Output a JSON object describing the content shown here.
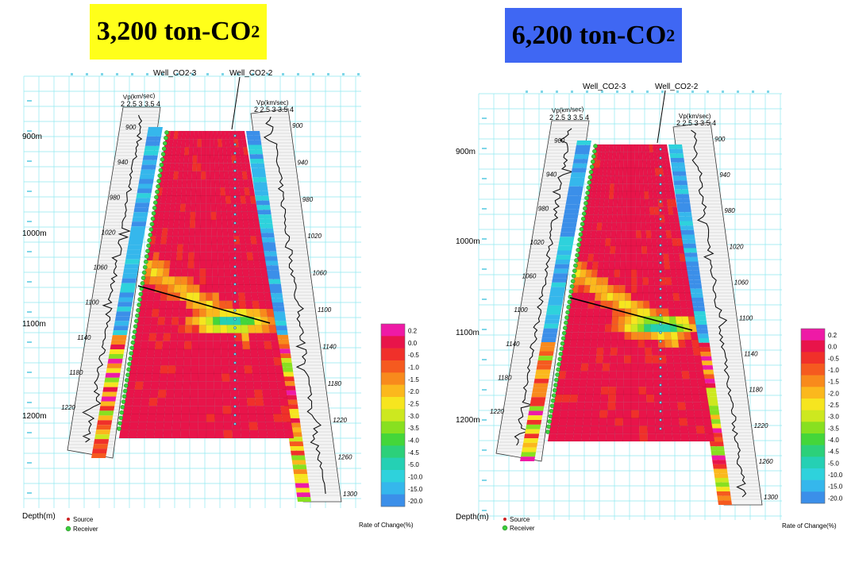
{
  "panels": [
    {
      "id": "left",
      "banner": {
        "text": "3,200 ton-CO",
        "sub": "2",
        "bg": "#ffff1a"
      },
      "well_left": "Well_CO2-3",
      "well_right": "Well_CO2-2",
      "vp_label": "Vp(km/sec)",
      "vp_ticks": "2 2.5 3 3.5 4",
      "depth_labels": [
        "900m",
        "1000m",
        "1100m",
        "1200m"
      ],
      "md_left": [
        "900",
        "940",
        "980",
        "1020",
        "1060",
        "1100",
        "1140",
        "1180",
        "1220"
      ],
      "md_right": [
        "900",
        "940",
        "980",
        "1020",
        "1060",
        "1100",
        "1140",
        "1180",
        "1220",
        "1260",
        "1300"
      ],
      "depth_axis": "Depth(m)",
      "legend_source": "Source",
      "legend_receiver": "Receiver",
      "colorbar_label": "Rate of Change(%)"
    },
    {
      "id": "right",
      "banner": {
        "text": "6,200 ton-CO",
        "sub": "2",
        "bg": "#3f67f3"
      },
      "well_left": "Well_CO2-3",
      "well_right": "Well_CO2-2",
      "vp_label": "Vp(km/sec)",
      "vp_ticks": "2 2.5 3 3.5 4",
      "depth_labels": [
        "900m",
        "1000m",
        "1100m",
        "1200m"
      ],
      "md_left": [
        "900",
        "940",
        "980",
        "1020",
        "1060",
        "1100",
        "1140",
        "1180",
        "1220"
      ],
      "md_right": [
        "900",
        "940",
        "980",
        "1020",
        "1060",
        "1100",
        "1140",
        "1180",
        "1220",
        "1260",
        "1300"
      ],
      "depth_axis": "Depth(m)",
      "legend_source": "Source",
      "legend_receiver": "Receiver",
      "colorbar_label": "Rate of Change(%)"
    }
  ],
  "colorscale": {
    "labels": [
      "0.2",
      "0.0",
      "-0.5",
      "-1.0",
      "-1.5",
      "-2.0",
      "-2.5",
      "-3.0",
      "-3.5",
      "-4.0",
      "-4.5",
      "-5.0",
      "-10.0",
      "-15.0",
      "-20.0"
    ],
    "colors": [
      "#ee1aa6",
      "#e8144a",
      "#f0302a",
      "#f55a1f",
      "#f88a1c",
      "#fbb81d",
      "#f6e51f",
      "#cde81f",
      "#88e020",
      "#44d63a",
      "#2cd07a",
      "#25d0b4",
      "#2ed2dc",
      "#35b7ec",
      "#3b8fe9"
    ]
  },
  "colors": {
    "grid": "#8fe8ef",
    "tomo": "#e01f3d",
    "source": "#cc2222",
    "receiver": "#3ccf3c"
  }
}
